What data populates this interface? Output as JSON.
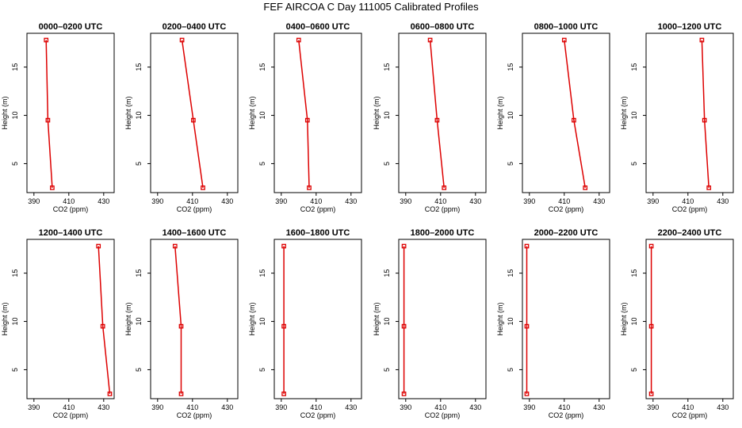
{
  "title": "FEF AIRCOA C  Day 111005  Calibrated Profiles",
  "chart_data": {
    "type": "line",
    "xlabel": "CO2 (ppm)",
    "ylabel": "Height (m)",
    "xlim": [
      386,
      436
    ],
    "ylim": [
      2,
      18.5
    ],
    "xticks": [
      390,
      410,
      430
    ],
    "yticks": [
      5,
      10,
      15
    ],
    "grid": false,
    "series_color": "#dd0000",
    "heights": [
      17.8,
      9.5,
      2.5
    ],
    "panels": [
      {
        "title": "0000–0200 UTC",
        "co2": [
          397.0,
          398.0,
          400.5
        ]
      },
      {
        "title": "0200–0400 UTC",
        "co2": [
          404.0,
          410.5,
          416.0
        ]
      },
      {
        "title": "0400–0600 UTC",
        "co2": [
          400.0,
          405.0,
          406.0
        ]
      },
      {
        "title": "0600–0800 UTC",
        "co2": [
          404.0,
          408.0,
          412.0
        ]
      },
      {
        "title": "0800–1000 UTC",
        "co2": [
          410.0,
          415.5,
          422.0
        ]
      },
      {
        "title": "1000–1200 UTC",
        "co2": [
          418.0,
          419.5,
          422.0
        ]
      },
      {
        "title": "1200–1400 UTC",
        "co2": [
          427.0,
          429.5,
          433.5
        ]
      },
      {
        "title": "1400–1600 UTC",
        "co2": [
          400.0,
          403.5,
          403.5
        ]
      },
      {
        "title": "1600–1800 UTC",
        "co2": [
          391.5,
          391.5,
          391.5
        ]
      },
      {
        "title": "1800–2000 UTC",
        "co2": [
          389.0,
          389.0,
          389.0
        ]
      },
      {
        "title": "2000–2200 UTC",
        "co2": [
          388.5,
          388.5,
          388.5
        ]
      },
      {
        "title": "2200–2400 UTC",
        "co2": [
          389.0,
          389.0,
          389.0
        ]
      }
    ]
  }
}
